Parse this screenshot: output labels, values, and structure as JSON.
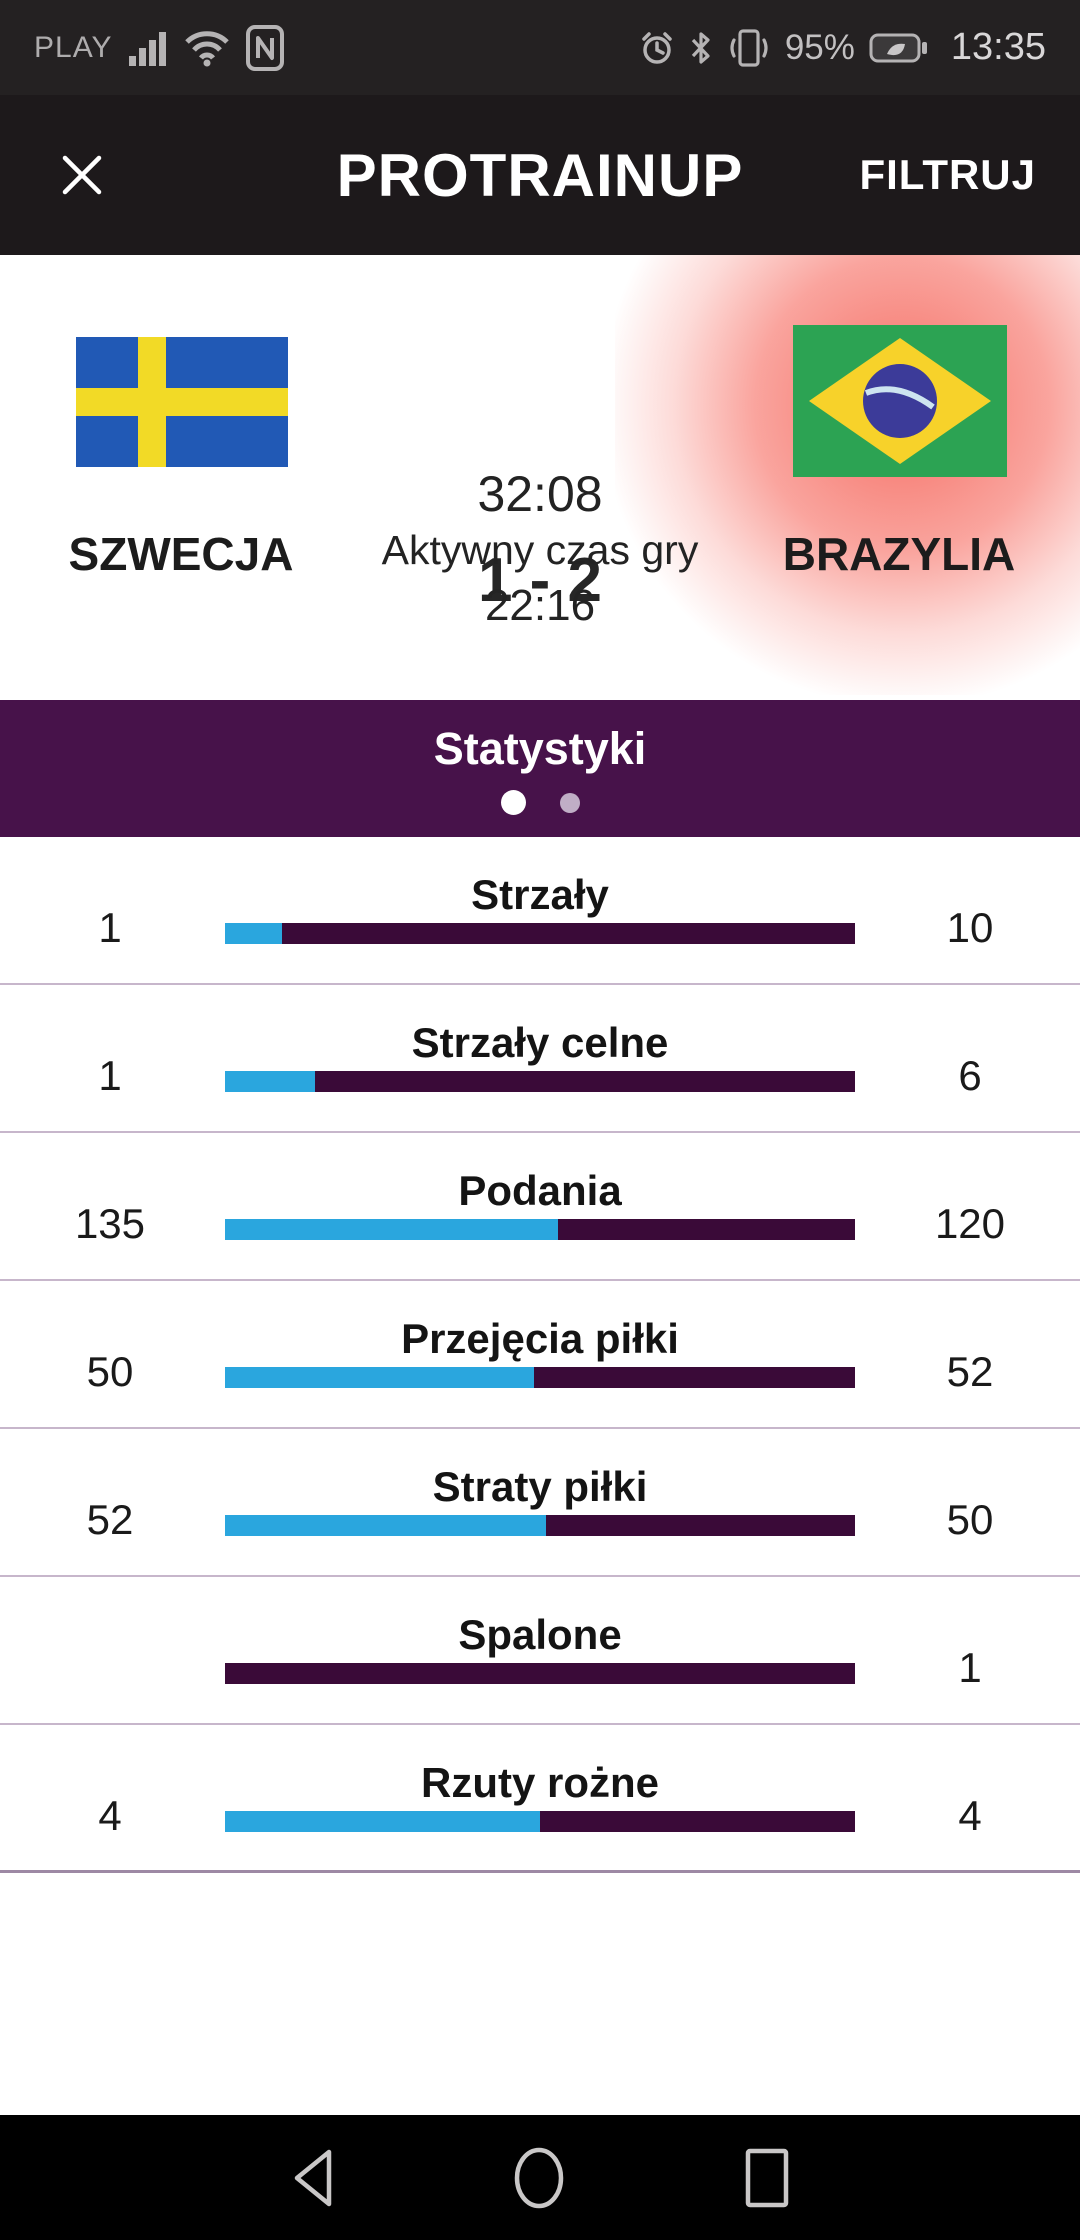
{
  "status_bar": {
    "carrier": "PLAY",
    "battery_percent": "95%",
    "time": "13:35"
  },
  "header": {
    "title": "PROTRAINUP",
    "filter_label": "FILTRUJ"
  },
  "match": {
    "home": {
      "name": "SZWECJA",
      "flag": "sweden"
    },
    "away": {
      "name": "BRAZYLIA",
      "flag": "brazil",
      "highlighted": true
    },
    "score": "1 - 2",
    "time": "32:08",
    "active_time_label": "Aktywny czas gry",
    "active_time": "22:16"
  },
  "stats": {
    "title": "Statystyki",
    "pages": 2,
    "active_page": 1,
    "rows": [
      {
        "label": "Strzały",
        "home": "1",
        "away": "10",
        "home_pct": 9.1
      },
      {
        "label": "Strzały celne",
        "home": "1",
        "away": "6",
        "home_pct": 14.3
      },
      {
        "label": "Podania",
        "home": "135",
        "away": "120",
        "home_pct": 52.9
      },
      {
        "label": "Przejęcia piłki",
        "home": "50",
        "away": "52",
        "home_pct": 49.0
      },
      {
        "label": "Straty piłki",
        "home": "52",
        "away": "50",
        "home_pct": 51.0
      },
      {
        "label": "Spalone",
        "home": "",
        "away": "1",
        "home_pct": 0
      },
      {
        "label": "Rzuty rożne",
        "home": "4",
        "away": "4",
        "home_pct": 50.0
      }
    ]
  },
  "icons": {
    "close": "✕",
    "nfc": "N",
    "signal": "signal-bars",
    "wifi": "wifi-arcs",
    "alarm": "alarm-clock",
    "bluetooth": "bluetooth-rune",
    "vibrate": "vibrate-phone",
    "battery": "battery-leaf",
    "nav_back": "triangle-left-outline",
    "nav_home": "circle-outline",
    "nav_recents": "square-outline"
  },
  "colors": {
    "statusbar": "#242122",
    "header": "#1d191b",
    "band": "#47124a",
    "bar": "#3a0a38",
    "blue": "#2aa6de",
    "divider": "#c7b6cb",
    "glow": "#f44a3d"
  }
}
